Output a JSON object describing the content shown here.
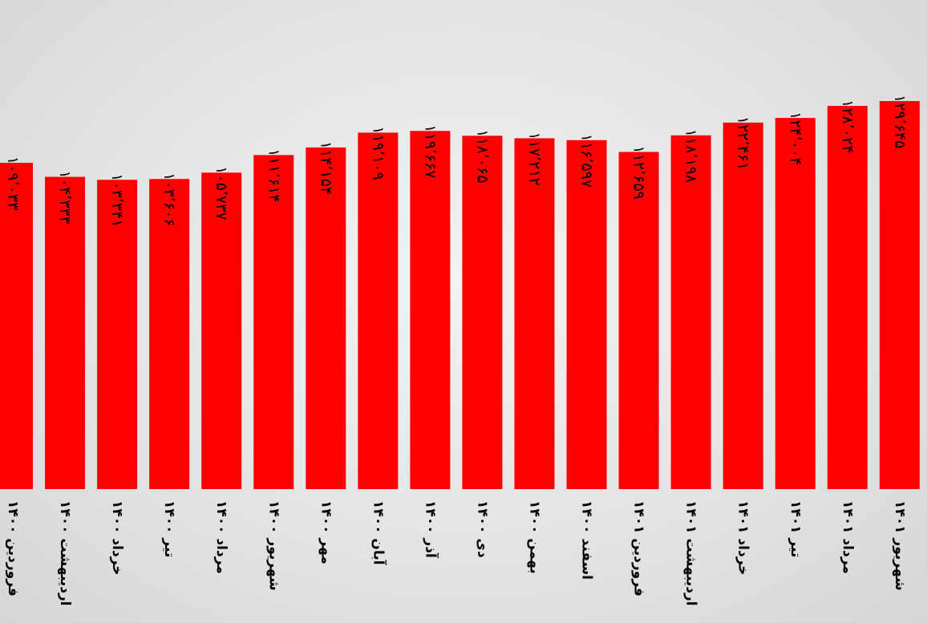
{
  "chart_data": {
    "type": "bar",
    "categories": [
      "فروردین ۱۴۰۰",
      "اردیبهشت ۱۴۰۰",
      "خرداد ۱۴۰۰",
      "تیر ۱۴۰۰",
      "مرداد ۱۴۰۰",
      "شهریور ۱۴۰۰",
      "مهر ۱۴۰۰",
      "آبان ۱۴۰۰",
      "آذر ۱۴۰۰",
      "دی ۱۴۰۰",
      "بهمن ۱۴۰۰",
      "اسفند ۱۴۰۰",
      "فروردین ۱۴۰۱",
      "اردیبهشت ۱۴۰۱",
      "خرداد ۱۴۰۱",
      "تیر ۱۴۰۱",
      "مرداد ۱۴۰۱",
      "شهریور ۱۴۰۱"
    ],
    "values": [
      109033,
      104333,
      103341,
      103606,
      105737,
      111614,
      114154,
      119109,
      119667,
      118065,
      117212,
      116597,
      112659,
      118198,
      122461,
      124004,
      128024,
      129645
    ],
    "value_labels": [
      "۱۰۹٬۰۳۳",
      "۱۰۴٬۳۳۳",
      "۱۰۳٬۳۴۱",
      "۱۰۳٬۶۰۶",
      "۱۰۵٬۷۳۷",
      "۱۱۱٬۶۱۴",
      "۱۱۴٬۱۵۴",
      "۱۱۹٬۱۰۹",
      "۱۱۹٬۶۶۷",
      "۱۱۸٬۰۶۵",
      "۱۱۷٬۲۱۲",
      "۱۱۶٬۵۹۷",
      "۱۱۲٬۶۵۹",
      "۱۱۸٬۱۹۸",
      "۱۲۲٬۴۶۱",
      "۱۲۴٬۰۰۴",
      "۱۲۸٬۰۲۴",
      "۱۲۹٬۶۴۵"
    ],
    "bar_color": "#ff0000",
    "ylim": [
      0,
      140000
    ],
    "grid": false,
    "legend": "none",
    "title": "",
    "xlabel": "",
    "ylabel": ""
  }
}
